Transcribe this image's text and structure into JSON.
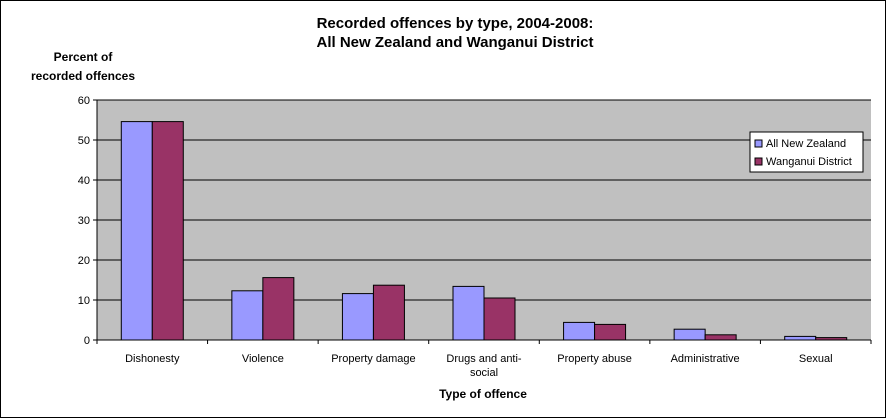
{
  "chart_data": {
    "type": "bar",
    "title": "Recorded offences by type, 2004-2008:",
    "subtitle": "All New Zealand and Wanganui District",
    "ylabel_line1": "Percent of",
    "ylabel_line2": "recorded offences",
    "xlabel": "Type of offence",
    "ylim": [
      0,
      60
    ],
    "yticks": [
      0,
      10,
      20,
      30,
      40,
      50,
      60
    ],
    "grid": true,
    "legend_position": "top-right",
    "categories": [
      [
        "Dishonesty"
      ],
      [
        "Violence"
      ],
      [
        "Property damage"
      ],
      [
        "Drugs and anti-",
        "social"
      ],
      [
        "Property abuse"
      ],
      [
        "Administrative"
      ],
      [
        "Sexual"
      ]
    ],
    "series": [
      {
        "name": "All New Zealand",
        "color": "#9999ff",
        "values": [
          54.6,
          12.3,
          11.6,
          13.4,
          4.4,
          2.7,
          0.9
        ]
      },
      {
        "name": "Wanganui District",
        "color": "#993366",
        "values": [
          54.6,
          15.6,
          13.7,
          10.5,
          3.9,
          1.3,
          0.6
        ]
      }
    ],
    "plot_background": "#c0c0c0"
  }
}
